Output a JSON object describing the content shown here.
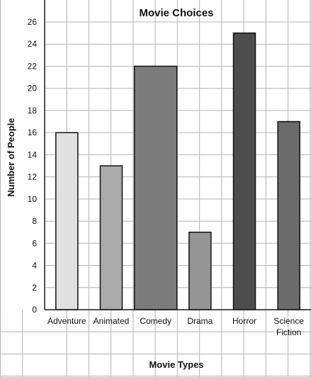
{
  "chart_data": {
    "type": "bar",
    "title": "Movie Choices",
    "xlabel": "Movie Types",
    "ylabel": "Number of People",
    "ylim": [
      0,
      26
    ],
    "yticks": [
      0,
      2,
      4,
      6,
      8,
      10,
      12,
      14,
      16,
      18,
      20,
      22,
      24,
      26
    ],
    "grid": true,
    "categories": [
      "Adventure",
      "Animated",
      "Comedy",
      "Drama",
      "Horror",
      "Science Fiction"
    ],
    "category_lines": [
      [
        "Adventure"
      ],
      [
        "Animated"
      ],
      [
        "Comedy"
      ],
      [
        "Drama"
      ],
      [
        "Horror"
      ],
      [
        "Science",
        "Fiction"
      ]
    ],
    "values": [
      16,
      13,
      22,
      7,
      25,
      17
    ],
    "bar_colors": [
      "#e0e0e0",
      "#ababab",
      "#7b7b7b",
      "#959595",
      "#4d4d4d",
      "#6b6b6b"
    ]
  }
}
